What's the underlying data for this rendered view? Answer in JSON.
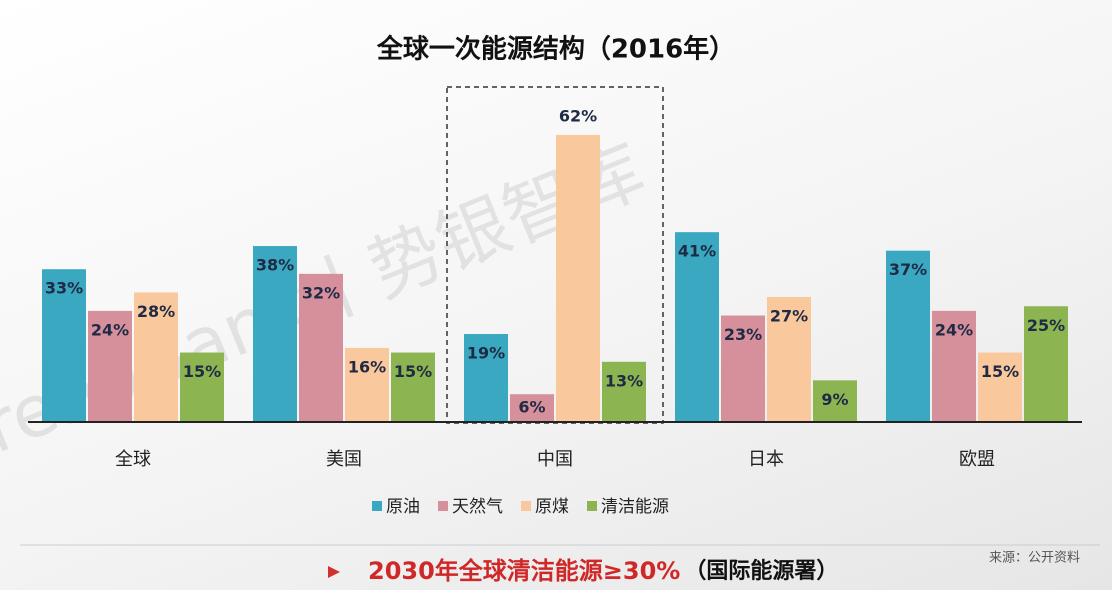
{
  "chart_data": {
    "type": "bar",
    "title": "全球一次能源结构（2016年）",
    "categories": [
      "全球",
      "美国",
      "中国",
      "日本",
      "欧盟"
    ],
    "series": [
      {
        "name": "原油",
        "color": "#3aa8c1",
        "values": [
          33,
          38,
          19,
          41,
          37
        ],
        "value_labels": [
          "33%",
          "38%",
          "19%",
          "41%",
          "37%"
        ]
      },
      {
        "name": "天然气",
        "color": "#d6909c",
        "values": [
          24,
          32,
          6,
          23,
          24
        ],
        "value_labels": [
          "24%",
          "32%",
          "6%",
          "23%",
          "24%"
        ]
      },
      {
        "name": "原煤",
        "color": "#f9c89c",
        "values": [
          28,
          16,
          62,
          27,
          15
        ],
        "value_labels": [
          "28%",
          "16%",
          "62%",
          "27%",
          "15%"
        ]
      },
      {
        "name": "清洁能源",
        "color": "#8cb552",
        "values": [
          15,
          15,
          13,
          9,
          25
        ],
        "value_labels": [
          "15%",
          "15%",
          "13%",
          "9%",
          "25%"
        ]
      }
    ],
    "watermark": "TrendBank丨势银智库",
    "highlight": "2030年全球清洁能源≥30%",
    "highlight_note": "（国际能源署）",
    "source": "来源：公开资料"
  }
}
